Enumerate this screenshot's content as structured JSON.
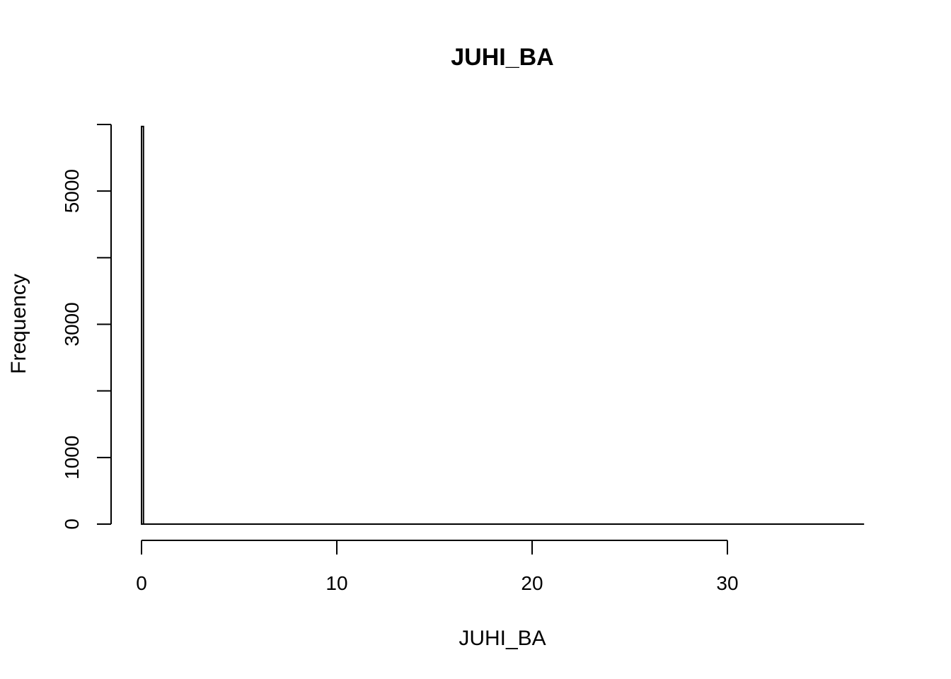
{
  "chart_data": {
    "type": "bar",
    "title": "JUHI_BA",
    "xlabel": "JUHI_BA",
    "ylabel": "Frequency",
    "xlim": [
      0,
      37
    ],
    "ylim": [
      0,
      6000
    ],
    "x_ticks": [
      0,
      10,
      20,
      30
    ],
    "x_tick_labels": [
      "0",
      "10",
      "20",
      "30"
    ],
    "y_ticks": [
      0,
      1000,
      2000,
      3000,
      4000,
      5000,
      6000
    ],
    "y_tick_labels": [
      "0",
      "1000",
      "",
      "3000",
      "",
      "5000",
      ""
    ],
    "bin_width": 0.1,
    "bins": [
      {
        "x0": 0.0,
        "x1": 0.1,
        "count": 5970
      }
    ],
    "grid": false,
    "legend": "none",
    "colors": {
      "bar_fill": "#ffffff",
      "bar_stroke": "#000000",
      "axis": "#000000"
    }
  }
}
